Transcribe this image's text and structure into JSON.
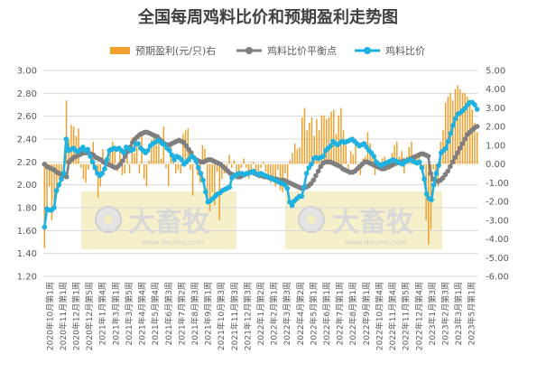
{
  "chart_data": {
    "type": "bar+line",
    "title": "全国每周鸡料比价和预期盈利走势图",
    "legend_position": "top",
    "grid": "horizontal",
    "left_axis": {
      "ylim": [
        1.2,
        3.0
      ],
      "ticks": [
        "3.00",
        "2.80",
        "2.60",
        "2.40",
        "2.20",
        "2.00",
        "1.80",
        "1.60",
        "1.40",
        "1.20"
      ]
    },
    "right_axis": {
      "ylim": [
        -6.0,
        5.0
      ],
      "ticks": [
        "5.00",
        "4.00",
        "3.00",
        "2.00",
        "1.00",
        "0.00",
        "-1.00",
        "-2.00",
        "-3.00",
        "-4.00",
        "-5.00",
        "-6.00"
      ]
    },
    "x_labels": [
      "2020年10月第1周",
      "2020年11月第1周",
      "2020年12月第1周",
      "2020年12月第5周",
      "2021年1月第4周",
      "2021年3月第1周",
      "2021年3月第5周",
      "2021年4月第4周",
      "2021年5月第4周",
      "2021年6月第3周",
      "2021年7月第2周",
      "2021年8月第3周",
      "2021年9月第1周",
      "2021年10月第3周",
      "2021年11月第3周",
      "2021年12月第3周",
      "2022年1月第2周",
      "2022年2月第1周",
      "2022年3月第3周",
      "2022年4月第2周",
      "2022年5月第1周",
      "2022年6月第1周",
      "2022年7月第1周",
      "2022年8月第1周",
      "2022年9月第1周",
      "2022年10月第4周",
      "2022年11月第4周",
      "2022年11月第5周",
      "2022年12月第4周",
      "2023年1月第3周",
      "2023年2月第3周",
      "2023年3月第1周",
      "2023年5月第1周"
    ],
    "series": [
      {
        "name": "预期盈利(元/只)右",
        "type": "bar",
        "axis": "right",
        "color": "#F0A02C",
        "values": [
          -4.5,
          -2.5,
          -1.2,
          -3.0,
          -2.2,
          -1.5,
          -0.8,
          -0.5,
          -0.2,
          3.4,
          1.3,
          2.1,
          2.0,
          1.5,
          1.9,
          -0.2,
          -0.8,
          -1.0,
          -0.3,
          0.2,
          1.2,
          -0.5,
          -1.8,
          -1.2,
          0.8,
          -0.3,
          0.5,
          0.9,
          1.2,
          0.8,
          -0.4,
          0.8,
          -0.6,
          -0.5,
          0.9,
          -0.5,
          1.4,
          0.6,
          1.1,
          -0.5,
          1.6,
          -0.8,
          -1.2,
          0.2,
          1.3,
          1.6,
          1.0,
          1.6,
          0.3,
          2.0,
          -0.2,
          -1.2,
          1.2,
          0.4,
          -0.5,
          -0.3,
          -0.5,
          1.6,
          1.8,
          1.9,
          -0.3,
          -1.7,
          0.2,
          -0.6,
          -1.0,
          1.0,
          0.8,
          -2.0,
          -2.5,
          -1.5,
          -2.2,
          -0.4,
          -3.0,
          -0.8,
          -0.5,
          -0.2,
          0.5,
          -0.2,
          0.2,
          -0.6,
          -0.4,
          -0.2,
          0.3,
          -0.2,
          -0.8,
          -0.3,
          0.1,
          -0.5,
          -0.4,
          -0.2,
          0.1,
          -0.4,
          -0.6,
          -1.0,
          -0.8,
          -1.2,
          -0.3,
          -1.4,
          -1.5,
          -0.5,
          -1.3,
          0.2,
          0.6,
          1.1,
          0.8,
          0.9,
          2.5,
          3.0,
          1.8,
          2.2,
          2.5,
          1.5,
          2.4,
          1.8,
          2.6,
          2.6,
          2.4,
          2.5,
          2.8,
          2.9,
          1.6,
          2.6,
          3.0,
          1.8,
          1.0,
          -0.2,
          0.7,
          0.5,
          1.2,
          -0.2,
          -0.6,
          0.3,
          0.4,
          1.7,
          1.1,
          0.6,
          -0.6,
          -0.2,
          0.1,
          0.3,
          0.4,
          0.2,
          -0.3,
          0.6,
          1.0,
          1.2,
          0.4,
          0.7,
          -0.5,
          0.4,
          0.9,
          1.2,
          0.5,
          0.3,
          0.4,
          -0.2,
          -0.3,
          -3.0,
          -4.3,
          -3.5,
          -0.3,
          -0.5,
          -1.2,
          1.2,
          1.8,
          3.3,
          3.6,
          3.8,
          3.4,
          4.0,
          4.2,
          4.0,
          3.8,
          3.8,
          3.6,
          3.2,
          2.9,
          2.2,
          1.7
        ]
      },
      {
        "name": "鸡料比价平衡点",
        "type": "line",
        "axis": "left",
        "color": "#7F7F7F",
        "values": [
          2.18,
          2.16,
          2.15,
          2.14,
          2.13,
          2.11,
          2.1,
          2.09,
          2.08,
          2.07,
          2.2,
          2.22,
          2.24,
          2.25,
          2.26,
          2.27,
          2.28,
          2.28,
          2.28,
          2.27,
          2.26,
          2.24,
          2.23,
          2.22,
          2.2,
          2.19,
          2.18,
          2.17,
          2.16,
          2.15,
          2.16,
          2.18,
          2.21,
          2.25,
          2.29,
          2.33,
          2.37,
          2.4,
          2.42,
          2.44,
          2.45,
          2.46,
          2.46,
          2.45,
          2.44,
          2.43,
          2.42,
          2.4,
          2.38,
          2.36,
          2.35,
          2.35,
          2.36,
          2.37,
          2.38,
          2.39,
          2.38,
          2.37,
          2.34,
          2.31,
          2.28,
          2.24,
          2.22,
          2.21,
          2.2,
          2.2,
          2.21,
          2.22,
          2.22,
          2.21,
          2.2,
          2.19,
          2.18,
          2.16,
          2.14,
          2.12,
          2.1,
          2.09,
          2.08,
          2.07,
          2.07,
          2.08,
          2.09,
          2.1,
          2.11,
          2.11,
          2.1,
          2.09,
          2.08,
          2.08,
          2.07,
          2.07,
          2.06,
          2.06,
          2.05,
          2.05,
          2.04,
          2.04,
          2.04,
          2.03,
          2.02,
          2.01,
          2.0,
          1.99,
          1.98,
          1.97,
          1.97,
          1.98,
          1.99,
          2.01,
          2.04,
          2.08,
          2.12,
          2.16,
          2.19,
          2.2,
          2.2,
          2.2,
          2.19,
          2.18,
          2.17,
          2.16,
          2.14,
          2.13,
          2.12,
          2.11,
          2.11,
          2.12,
          2.14,
          2.16,
          2.18,
          2.2,
          2.2,
          2.19,
          2.18,
          2.17,
          2.16,
          2.15,
          2.14,
          2.14,
          2.15,
          2.16,
          2.17,
          2.18,
          2.19,
          2.2,
          2.2,
          2.21,
          2.21,
          2.22,
          2.23,
          2.24,
          2.25,
          2.26,
          2.27,
          2.27,
          2.26,
          2.25,
          2.1,
          2.05,
          2.04,
          2.03,
          2.04,
          2.06,
          2.09,
          2.12,
          2.16,
          2.2,
          2.24,
          2.28,
          2.32,
          2.36,
          2.4,
          2.44,
          2.46,
          2.48,
          2.5,
          2.51
        ]
      },
      {
        "name": "鸡料比价",
        "type": "line",
        "axis": "left",
        "color": "#1FB2E0",
        "values": [
          1.63,
          1.79,
          1.78,
          1.78,
          1.8,
          1.95,
          2.0,
          2.05,
          2.1,
          2.4,
          2.3,
          2.31,
          2.32,
          2.3,
          2.29,
          2.31,
          2.33,
          2.3,
          2.31,
          2.25,
          2.2,
          2.15,
          2.1,
          2.08,
          2.1,
          2.14,
          2.22,
          2.3,
          2.31,
          2.32,
          2.31,
          2.32,
          2.3,
          2.28,
          2.33,
          2.32,
          2.3,
          2.31,
          2.36,
          2.36,
          2.32,
          2.3,
          2.28,
          2.3,
          2.34,
          2.36,
          2.37,
          2.39,
          2.38,
          2.36,
          2.35,
          2.32,
          2.3,
          2.26,
          2.22,
          2.25,
          2.24,
          2.22,
          2.18,
          2.2,
          2.22,
          2.25,
          2.24,
          2.21,
          2.15,
          2.1,
          2.04,
          1.94,
          1.85,
          1.86,
          1.88,
          1.9,
          1.92,
          1.93,
          1.95,
          1.96,
          1.97,
          1.98,
          2.06,
          2.08,
          2.09,
          2.1,
          2.1,
          2.09,
          2.1,
          2.1,
          2.11,
          2.12,
          2.1,
          2.09,
          2.1,
          2.09,
          2.08,
          2.07,
          2.06,
          2.05,
          2.04,
          2.03,
          2.02,
          2.01,
          2.0,
          1.97,
          1.85,
          1.82,
          1.86,
          1.88,
          1.9,
          1.9,
          1.98,
          2.1,
          2.15,
          2.18,
          2.23,
          2.24,
          2.23,
          2.24,
          2.25,
          2.3,
          2.32,
          2.34,
          2.38,
          2.36,
          2.35,
          2.37,
          2.38,
          2.37,
          2.38,
          2.39,
          2.4,
          2.38,
          2.36,
          2.34,
          2.35,
          2.36,
          2.33,
          2.3,
          2.28,
          2.25,
          2.2,
          2.18,
          2.17,
          2.18,
          2.19,
          2.2,
          2.21,
          2.22,
          2.21,
          2.2,
          2.19,
          2.18,
          2.2,
          2.21,
          2.22,
          2.21,
          2.2,
          2.19,
          2.2,
          2.15,
          2.05,
          1.92,
          1.88,
          1.87,
          2.0,
          2.1,
          2.17,
          2.28,
          2.3,
          2.32,
          2.38,
          2.45,
          2.52,
          2.58,
          2.62,
          2.63,
          2.65,
          2.67,
          2.7,
          2.72,
          2.72,
          2.7,
          2.66
        ]
      }
    ]
  },
  "watermark": {
    "brand": "大畜牧",
    "url": "www.dxumu.com",
    "color": "#F3EDBF"
  }
}
